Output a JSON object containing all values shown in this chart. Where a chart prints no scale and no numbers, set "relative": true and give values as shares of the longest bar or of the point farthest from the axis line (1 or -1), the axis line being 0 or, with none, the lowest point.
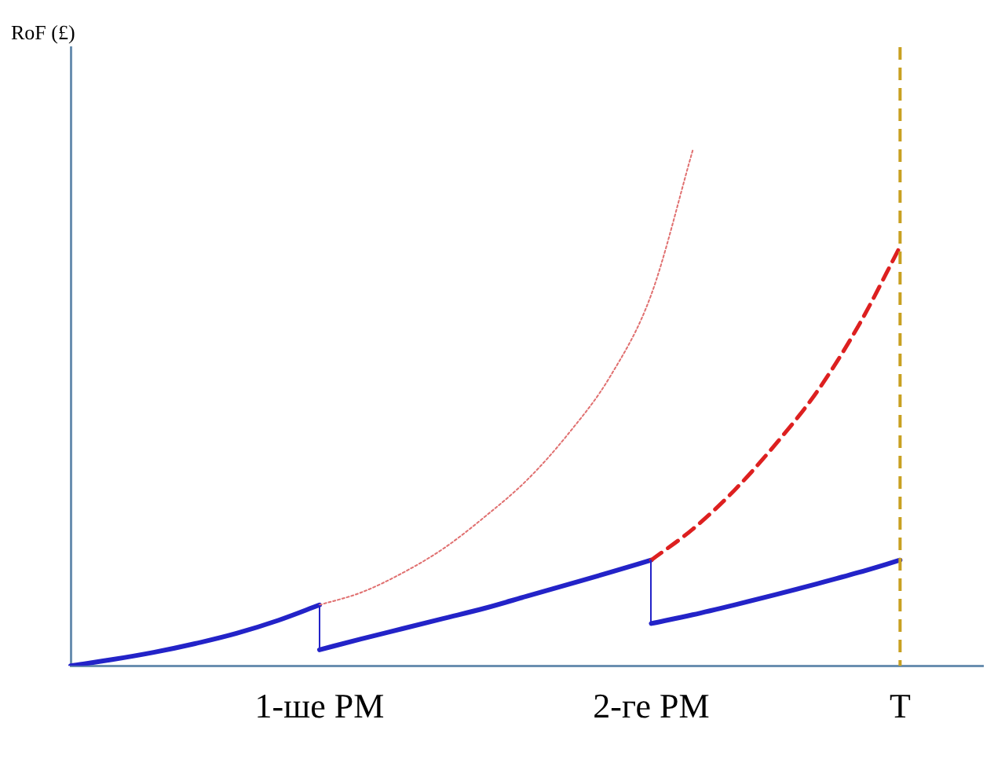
{
  "chart_data": {
    "type": "line",
    "relative": true,
    "annotations": [
      "RoF (£)"
    ],
    "categories": [
      null,
      null,
      null,
      null,
      null,
      null,
      "1-ше PM",
      null,
      null,
      null,
      null,
      null,
      null,
      null,
      "2-ге PM",
      null,
      null,
      null,
      null,
      null,
      "T",
      null,
      null
    ],
    "grid": false,
    "legend": false,
    "marker": "none",
    "series": [
      {
        "color": "#2323c8",
        "line_style": "solid",
        "values": [
          0,
          0.012,
          0.026,
          0.043,
          0.063,
          0.088,
          0.118,
          null,
          null,
          null,
          null,
          null,
          null,
          null,
          null,
          null,
          null,
          null,
          null,
          null,
          null,
          null,
          null
        ]
      },
      {
        "color": "#2323c8",
        "line_style": "solid",
        "values": [
          null,
          null,
          null,
          null,
          null,
          null,
          0.031,
          0.052,
          0.072,
          0.092,
          0.112,
          0.135,
          0.158,
          0.181,
          0.205,
          null,
          null,
          null,
          null,
          null,
          null,
          null,
          null
        ]
      },
      {
        "color": "#2323c8",
        "line_style": "solid",
        "values": [
          null,
          null,
          null,
          null,
          null,
          null,
          null,
          null,
          null,
          null,
          null,
          null,
          null,
          null,
          0.082,
          0.099,
          0.118,
          0.138,
          0.159,
          0.181,
          0.205,
          null,
          null
        ]
      },
      {
        "color": "#e07070",
        "line_style": "dotted",
        "values": [
          null,
          null,
          null,
          null,
          null,
          null,
          0.118,
          0.142,
          0.18,
          0.228,
          0.29,
          0.36,
          0.45,
          0.56,
          0.72,
          1,
          null,
          null,
          null,
          null,
          null,
          null,
          null
        ]
      },
      {
        "color": "#dd2020",
        "line_style": "dashed",
        "values": [
          null,
          null,
          null,
          null,
          null,
          null,
          null,
          null,
          null,
          null,
          null,
          null,
          null,
          null,
          0.205,
          0.265,
          0.34,
          0.43,
          0.532,
          0.66,
          0.813,
          null,
          null
        ]
      }
    ],
    "ref_lines": [
      {
        "axis": "x",
        "value": "T",
        "color": "#c8a020",
        "line_style": "dashed"
      }
    ]
  }
}
